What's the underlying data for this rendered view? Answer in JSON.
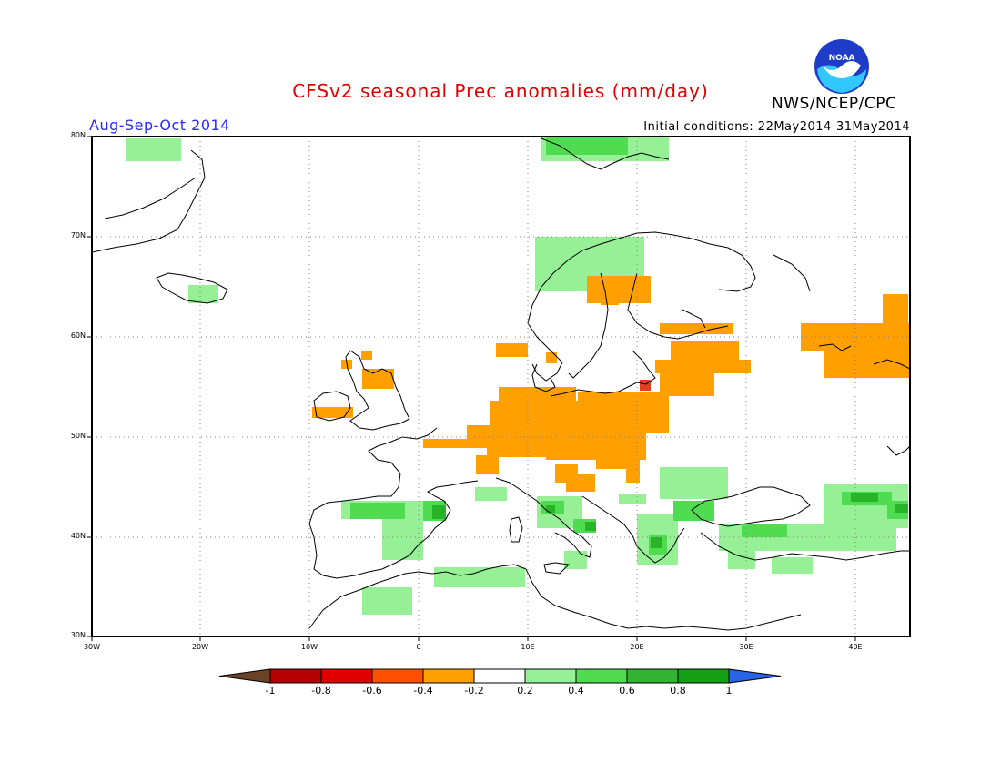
{
  "title": "CFSv2 seasonal Prec anomalies (mm/day)",
  "season": "Aug-Sep-Oct 2014",
  "initial_conditions": "Initial conditions: 22May2014-31May2014",
  "agency": "NWS/NCEP/CPC",
  "logo_text": "NOAA",
  "map": {
    "lon_range": [
      -30,
      45
    ],
    "lat_range": [
      30,
      80
    ],
    "y_ticks": [
      "80N",
      "70N",
      "60N",
      "50N",
      "40N",
      "30N"
    ],
    "x_ticks": [
      "30W",
      "20W",
      "10W",
      "0",
      "10E",
      "20E",
      "30E",
      "40E"
    ],
    "grid": true
  },
  "colorbar": {
    "labels": [
      "-1",
      "-0.8",
      "-0.6",
      "-0.4",
      "-0.2",
      "0.2",
      "0.4",
      "0.6",
      "0.8",
      "1"
    ],
    "colors": [
      "#6b4226",
      "#b40000",
      "#e00000",
      "#ff5000",
      "#ffa000",
      "#ffffff",
      "#96f096",
      "#50dc50",
      "#32b432",
      "#14a014",
      "#2864e6"
    ]
  },
  "anomaly_colors": {
    "neg_0_2": "#ffa000",
    "neg_0_6": "#e63c1e",
    "pos_0_2": "#96f096",
    "pos_0_4": "#50dc50",
    "pos_0_6": "#28b428"
  }
}
